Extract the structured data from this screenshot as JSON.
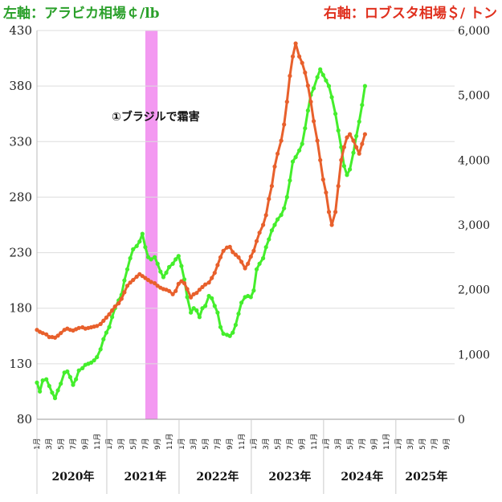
{
  "header": {
    "left_title": "左軸：アラビカ相場￠/lb",
    "right_title": "右軸：ロブスタ相場＄/ トン"
  },
  "colors": {
    "arabica": "#44ee2c",
    "robusta": "#e8602c",
    "highlight": "#f28ef0",
    "grid": "#dddddd"
  },
  "chart_data": {
    "type": "line",
    "y_left": {
      "label": "左軸：アラビカ相場￠/lb",
      "ylim": [
        80,
        430
      ],
      "ticks": [
        "80",
        "130",
        "180",
        "230",
        "280",
        "330",
        "380",
        "430"
      ]
    },
    "y_right": {
      "label": "右軸：ロブスタ相場＄/ トン",
      "ylim": [
        0,
        6000
      ],
      "ticks": [
        "0",
        "1,000",
        "2,000",
        "3,000",
        "4,000",
        "5,000",
        "6,000"
      ]
    },
    "x_month_labels": [
      "1月",
      "3月",
      "5月",
      "7月",
      "9月",
      "11月"
    ],
    "years": [
      "2020年",
      "2021年",
      "2022年",
      "2023年",
      "2024年",
      "2025年"
    ],
    "annotation": {
      "text": "①ブラジルで霜害",
      "x_start": 2021.5,
      "x_end": 2021.67
    },
    "series": [
      {
        "name": "アラビカ相場",
        "axis": "left",
        "points": [
          [
            2020.0,
            113
          ],
          [
            2020.04,
            105
          ],
          [
            2020.08,
            115
          ],
          [
            2020.13,
            116
          ],
          [
            2020.17,
            110
          ],
          [
            2020.21,
            104
          ],
          [
            2020.25,
            99
          ],
          [
            2020.29,
            106
          ],
          [
            2020.33,
            112
          ],
          [
            2020.38,
            122
          ],
          [
            2020.42,
            123
          ],
          [
            2020.46,
            118
          ],
          [
            2020.5,
            111
          ],
          [
            2020.54,
            116
          ],
          [
            2020.58,
            124
          ],
          [
            2020.63,
            126
          ],
          [
            2020.67,
            129
          ],
          [
            2020.71,
            130
          ],
          [
            2020.75,
            131
          ],
          [
            2020.79,
            133
          ],
          [
            2020.83,
            136
          ],
          [
            2020.88,
            143
          ],
          [
            2020.92,
            152
          ],
          [
            2020.96,
            158
          ],
          [
            2021.0,
            163
          ],
          [
            2021.04,
            172
          ],
          [
            2021.08,
            180
          ],
          [
            2021.13,
            187
          ],
          [
            2021.17,
            192
          ],
          [
            2021.21,
            205
          ],
          [
            2021.25,
            215
          ],
          [
            2021.29,
            225
          ],
          [
            2021.33,
            233
          ],
          [
            2021.38,
            236
          ],
          [
            2021.42,
            240
          ],
          [
            2021.46,
            247
          ],
          [
            2021.5,
            235
          ],
          [
            2021.54,
            226
          ],
          [
            2021.58,
            224
          ],
          [
            2021.63,
            226
          ],
          [
            2021.67,
            220
          ],
          [
            2021.71,
            213
          ],
          [
            2021.75,
            208
          ],
          [
            2021.79,
            212
          ],
          [
            2021.83,
            217
          ],
          [
            2021.88,
            220
          ],
          [
            2021.92,
            224
          ],
          [
            2021.96,
            227
          ],
          [
            2022.0,
            218
          ],
          [
            2022.04,
            206
          ],
          [
            2022.08,
            190
          ],
          [
            2022.13,
            176
          ],
          [
            2022.17,
            180
          ],
          [
            2022.21,
            178
          ],
          [
            2022.25,
            172
          ],
          [
            2022.29,
            180
          ],
          [
            2022.33,
            182
          ],
          [
            2022.38,
            191
          ],
          [
            2022.42,
            189
          ],
          [
            2022.46,
            182
          ],
          [
            2022.5,
            176
          ],
          [
            2022.54,
            163
          ],
          [
            2022.58,
            157
          ],
          [
            2022.63,
            156
          ],
          [
            2022.67,
            155
          ],
          [
            2022.71,
            158
          ],
          [
            2022.75,
            165
          ],
          [
            2022.79,
            175
          ],
          [
            2022.83,
            185
          ],
          [
            2022.88,
            190
          ],
          [
            2022.92,
            191
          ],
          [
            2022.96,
            190
          ],
          [
            2023.0,
            196
          ],
          [
            2023.04,
            215
          ],
          [
            2023.08,
            220
          ],
          [
            2023.13,
            225
          ],
          [
            2023.17,
            235
          ],
          [
            2023.21,
            242
          ],
          [
            2023.25,
            250
          ],
          [
            2023.29,
            255
          ],
          [
            2023.33,
            260
          ],
          [
            2023.38,
            264
          ],
          [
            2023.42,
            270
          ],
          [
            2023.46,
            280
          ],
          [
            2023.5,
            295
          ],
          [
            2023.54,
            312
          ],
          [
            2023.58,
            316
          ],
          [
            2023.63,
            322
          ],
          [
            2023.67,
            328
          ],
          [
            2023.71,
            342
          ],
          [
            2023.75,
            358
          ],
          [
            2023.79,
            372
          ],
          [
            2023.83,
            378
          ],
          [
            2023.88,
            388
          ],
          [
            2023.92,
            395
          ],
          [
            2023.96,
            390
          ],
          [
            2024.0,
            385
          ],
          [
            2024.04,
            380
          ],
          [
            2024.08,
            370
          ],
          [
            2024.13,
            355
          ],
          [
            2024.17,
            340
          ],
          [
            2024.21,
            325
          ],
          [
            2024.25,
            308
          ],
          [
            2024.29,
            300
          ],
          [
            2024.33,
            305
          ],
          [
            2024.38,
            320
          ],
          [
            2024.42,
            335
          ],
          [
            2024.46,
            348
          ],
          [
            2024.5,
            363
          ],
          [
            2024.54,
            380
          ]
        ]
      },
      {
        "name": "ロブスタ相場",
        "axis": "right",
        "points": [
          [
            2020.0,
            1380
          ],
          [
            2020.04,
            1350
          ],
          [
            2020.08,
            1330
          ],
          [
            2020.13,
            1310
          ],
          [
            2020.17,
            1270
          ],
          [
            2020.21,
            1270
          ],
          [
            2020.25,
            1260
          ],
          [
            2020.29,
            1290
          ],
          [
            2020.33,
            1330
          ],
          [
            2020.38,
            1380
          ],
          [
            2020.42,
            1400
          ],
          [
            2020.46,
            1380
          ],
          [
            2020.5,
            1370
          ],
          [
            2020.54,
            1390
          ],
          [
            2020.58,
            1410
          ],
          [
            2020.63,
            1420
          ],
          [
            2020.67,
            1400
          ],
          [
            2020.71,
            1410
          ],
          [
            2020.75,
            1420
          ],
          [
            2020.79,
            1430
          ],
          [
            2020.83,
            1440
          ],
          [
            2020.88,
            1470
          ],
          [
            2020.92,
            1520
          ],
          [
            2020.96,
            1570
          ],
          [
            2021.0,
            1620
          ],
          [
            2021.04,
            1680
          ],
          [
            2021.08,
            1740
          ],
          [
            2021.13,
            1790
          ],
          [
            2021.17,
            1860
          ],
          [
            2021.21,
            1960
          ],
          [
            2021.25,
            2060
          ],
          [
            2021.29,
            2110
          ],
          [
            2021.33,
            2150
          ],
          [
            2021.38,
            2200
          ],
          [
            2021.42,
            2240
          ],
          [
            2021.46,
            2210
          ],
          [
            2021.5,
            2180
          ],
          [
            2021.54,
            2150
          ],
          [
            2021.58,
            2120
          ],
          [
            2021.63,
            2100
          ],
          [
            2021.67,
            2060
          ],
          [
            2021.71,
            2030
          ],
          [
            2021.75,
            2010
          ],
          [
            2021.79,
            2000
          ],
          [
            2021.83,
            1980
          ],
          [
            2021.88,
            1930
          ],
          [
            2021.92,
            1980
          ],
          [
            2021.96,
            2090
          ],
          [
            2022.0,
            2130
          ],
          [
            2022.04,
            2100
          ],
          [
            2022.08,
            2010
          ],
          [
            2022.13,
            1880
          ],
          [
            2022.17,
            1930
          ],
          [
            2022.21,
            1950
          ],
          [
            2022.25,
            2000
          ],
          [
            2022.29,
            2040
          ],
          [
            2022.33,
            2080
          ],
          [
            2022.38,
            2110
          ],
          [
            2022.42,
            2180
          ],
          [
            2022.46,
            2260
          ],
          [
            2022.5,
            2380
          ],
          [
            2022.54,
            2500
          ],
          [
            2022.58,
            2600
          ],
          [
            2022.63,
            2650
          ],
          [
            2022.67,
            2660
          ],
          [
            2022.71,
            2580
          ],
          [
            2022.75,
            2540
          ],
          [
            2022.79,
            2500
          ],
          [
            2022.83,
            2430
          ],
          [
            2022.88,
            2330
          ],
          [
            2022.92,
            2400
          ],
          [
            2022.96,
            2510
          ],
          [
            2023.0,
            2600
          ],
          [
            2023.04,
            2750
          ],
          [
            2023.08,
            2880
          ],
          [
            2023.13,
            3000
          ],
          [
            2023.17,
            3150
          ],
          [
            2023.21,
            3400
          ],
          [
            2023.25,
            3600
          ],
          [
            2023.29,
            3900
          ],
          [
            2023.33,
            4100
          ],
          [
            2023.38,
            4300
          ],
          [
            2023.42,
            4550
          ],
          [
            2023.46,
            4900
          ],
          [
            2023.5,
            5300
          ],
          [
            2023.54,
            5600
          ],
          [
            2023.58,
            5800
          ],
          [
            2023.63,
            5600
          ],
          [
            2023.67,
            5500
          ],
          [
            2023.71,
            5350
          ],
          [
            2023.75,
            5150
          ],
          [
            2023.79,
            4900
          ],
          [
            2023.83,
            4600
          ],
          [
            2023.88,
            4300
          ],
          [
            2023.92,
            4000
          ],
          [
            2023.96,
            3700
          ],
          [
            2024.0,
            3500
          ],
          [
            2024.04,
            3200
          ],
          [
            2024.08,
            3000
          ],
          [
            2024.13,
            3200
          ],
          [
            2024.17,
            3600
          ],
          [
            2024.21,
            4000
          ],
          [
            2024.25,
            4200
          ],
          [
            2024.29,
            4350
          ],
          [
            2024.33,
            4400
          ],
          [
            2024.38,
            4300
          ],
          [
            2024.42,
            4200
          ],
          [
            2024.46,
            4100
          ],
          [
            2024.5,
            4250
          ],
          [
            2024.54,
            4400
          ]
        ]
      }
    ]
  }
}
